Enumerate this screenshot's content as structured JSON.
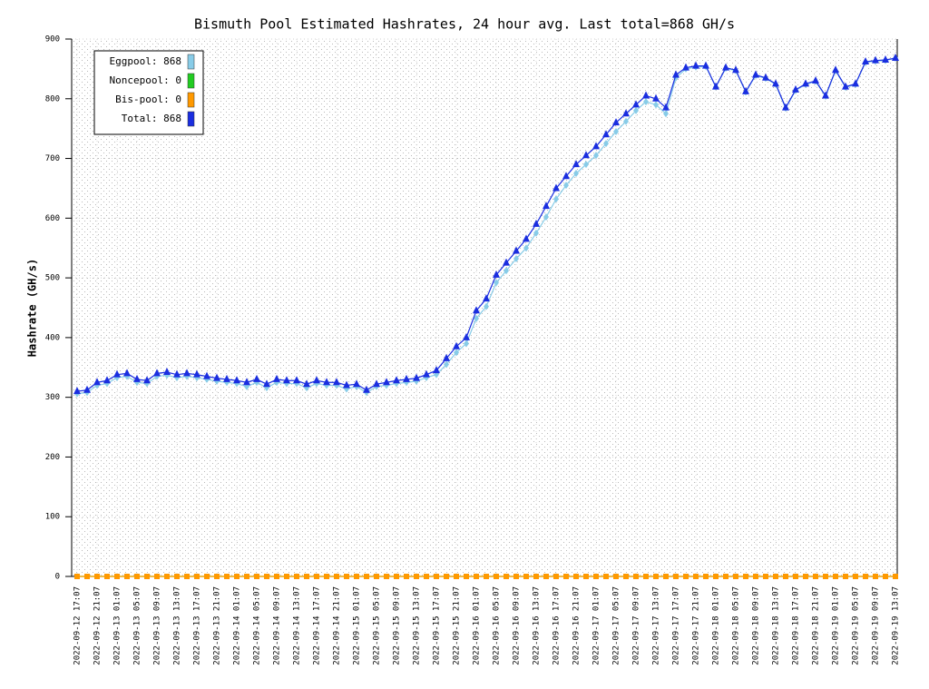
{
  "chart_data": {
    "type": "line",
    "title": "Bismuth Pool Estimated Hashrates, 24 hour avg. Last total=868 GH/s",
    "y_label": "Hashrate (GH/s)",
    "categories": [
      "2022-09-12 17:07",
      null,
      "2022-09-12 21:07",
      null,
      "2022-09-13 01:07",
      null,
      "2022-09-13 05:07",
      null,
      "2022-09-13 09:07",
      null,
      "2022-09-13 13:07",
      null,
      "2022-09-13 17:07",
      null,
      "2022-09-13 21:07",
      null,
      "2022-09-14 01:07",
      null,
      "2022-09-14 05:07",
      null,
      "2022-09-14 09:07",
      null,
      "2022-09-14 13:07",
      null,
      "2022-09-14 17:07",
      null,
      "2022-09-14 21:07",
      null,
      "2022-09-15 01:07",
      null,
      "2022-09-15 05:07",
      null,
      "2022-09-15 09:07",
      null,
      "2022-09-15 13:07",
      null,
      "2022-09-15 17:07",
      null,
      "2022-09-15 21:07",
      null,
      "2022-09-16 01:07",
      null,
      "2022-09-16 05:07",
      null,
      "2022-09-16 09:07",
      null,
      "2022-09-16 13:07",
      null,
      "2022-09-16 17:07",
      null,
      "2022-09-16 21:07",
      null,
      "2022-09-17 01:07",
      null,
      "2022-09-17 05:07",
      null,
      "2022-09-17 09:07",
      null,
      "2022-09-17 13:07",
      null,
      "2022-09-17 17:07",
      null,
      "2022-09-17 21:07",
      null,
      "2022-09-18 01:07",
      null,
      "2022-09-18 05:07",
      null,
      "2022-09-18 09:07",
      null,
      "2022-09-18 13:07",
      null,
      "2022-09-18 17:07",
      null,
      "2022-09-18 21:07",
      null,
      "2022-09-19 01:07",
      null,
      "2022-09-19 05:07",
      null,
      "2022-09-19 09:07",
      null,
      "2022-09-19 13:07"
    ],
    "series": [
      {
        "name": "Eggpool: 868",
        "color": "#88cce8",
        "marker": "diamond",
        "values": [
          306,
          308,
          320,
          323,
          333,
          335,
          325,
          323,
          335,
          337,
          333,
          335,
          333,
          330,
          327,
          325,
          323,
          318,
          325,
          316,
          325,
          323,
          323,
          316,
          323,
          320,
          320,
          314,
          318,
          308,
          318,
          320,
          323,
          325,
          327,
          333,
          338,
          355,
          375,
          390,
          432,
          452,
          492,
          512,
          532,
          550,
          575,
          602,
          632,
          655,
          675,
          690,
          705,
          725,
          745,
          762,
          780,
          795,
          790,
          775,
          835,
          850,
          853,
          854,
          820,
          851,
          847,
          811,
          839,
          834,
          824,
          784,
          814,
          824,
          829,
          804,
          847,
          819,
          824,
          861,
          863,
          864,
          868
        ]
      },
      {
        "name": "Noncepool: 0",
        "color": "#22cc22",
        "marker": "square",
        "values": [
          0,
          0,
          0,
          0,
          0,
          0,
          0,
          0,
          0,
          0,
          0,
          0,
          0,
          0,
          0,
          0,
          0,
          0,
          0,
          0,
          0,
          0,
          0,
          0,
          0,
          0,
          0,
          0,
          0,
          0,
          0,
          0,
          0,
          0,
          0,
          0,
          0,
          0,
          0,
          0,
          0,
          0,
          0,
          0,
          0,
          0,
          0,
          0,
          0,
          0,
          0,
          0,
          0,
          0,
          0,
          0,
          0,
          0,
          0,
          0,
          0,
          0,
          0,
          0,
          0,
          0,
          0,
          0,
          0,
          0,
          0,
          0,
          0,
          0,
          0,
          0,
          0,
          0,
          0,
          0,
          0,
          0,
          0
        ]
      },
      {
        "name": "Bis-pool: 0",
        "color": "#ff9900",
        "marker": "square",
        "values": [
          0,
          0,
          0,
          0,
          0,
          0,
          0,
          0,
          0,
          0,
          0,
          0,
          0,
          0,
          0,
          0,
          0,
          0,
          0,
          0,
          0,
          0,
          0,
          0,
          0,
          0,
          0,
          0,
          0,
          0,
          0,
          0,
          0,
          0,
          0,
          0,
          0,
          0,
          0,
          0,
          0,
          0,
          0,
          0,
          0,
          0,
          0,
          0,
          0,
          0,
          0,
          0,
          0,
          0,
          0,
          0,
          0,
          0,
          0,
          0,
          0,
          0,
          0,
          0,
          0,
          0,
          0,
          0,
          0,
          0,
          0,
          0,
          0,
          0,
          0,
          0,
          0,
          0,
          0,
          0,
          0,
          0,
          0
        ]
      },
      {
        "name": "Total: 868",
        "color": "#1a2ee0",
        "marker": "triangle",
        "values": [
          310,
          312,
          325,
          328,
          338,
          340,
          330,
          328,
          340,
          342,
          338,
          340,
          338,
          335,
          332,
          330,
          328,
          325,
          330,
          322,
          330,
          328,
          328,
          322,
          328,
          325,
          325,
          320,
          322,
          312,
          322,
          325,
          328,
          330,
          332,
          338,
          345,
          365,
          385,
          400,
          445,
          465,
          505,
          525,
          545,
          565,
          590,
          620,
          650,
          670,
          690,
          705,
          720,
          740,
          760,
          775,
          790,
          805,
          800,
          785,
          840,
          852,
          855,
          855,
          820,
          852,
          848,
          812,
          840,
          835,
          825,
          785,
          815,
          825,
          830,
          805,
          848,
          820,
          825,
          862,
          864,
          865,
          868
        ]
      }
    ],
    "ylim": [
      0,
      900
    ],
    "yticks": [
      0,
      100,
      200,
      300,
      400,
      500,
      600,
      700,
      800,
      900
    ],
    "grid": true,
    "legend": "upper left"
  }
}
